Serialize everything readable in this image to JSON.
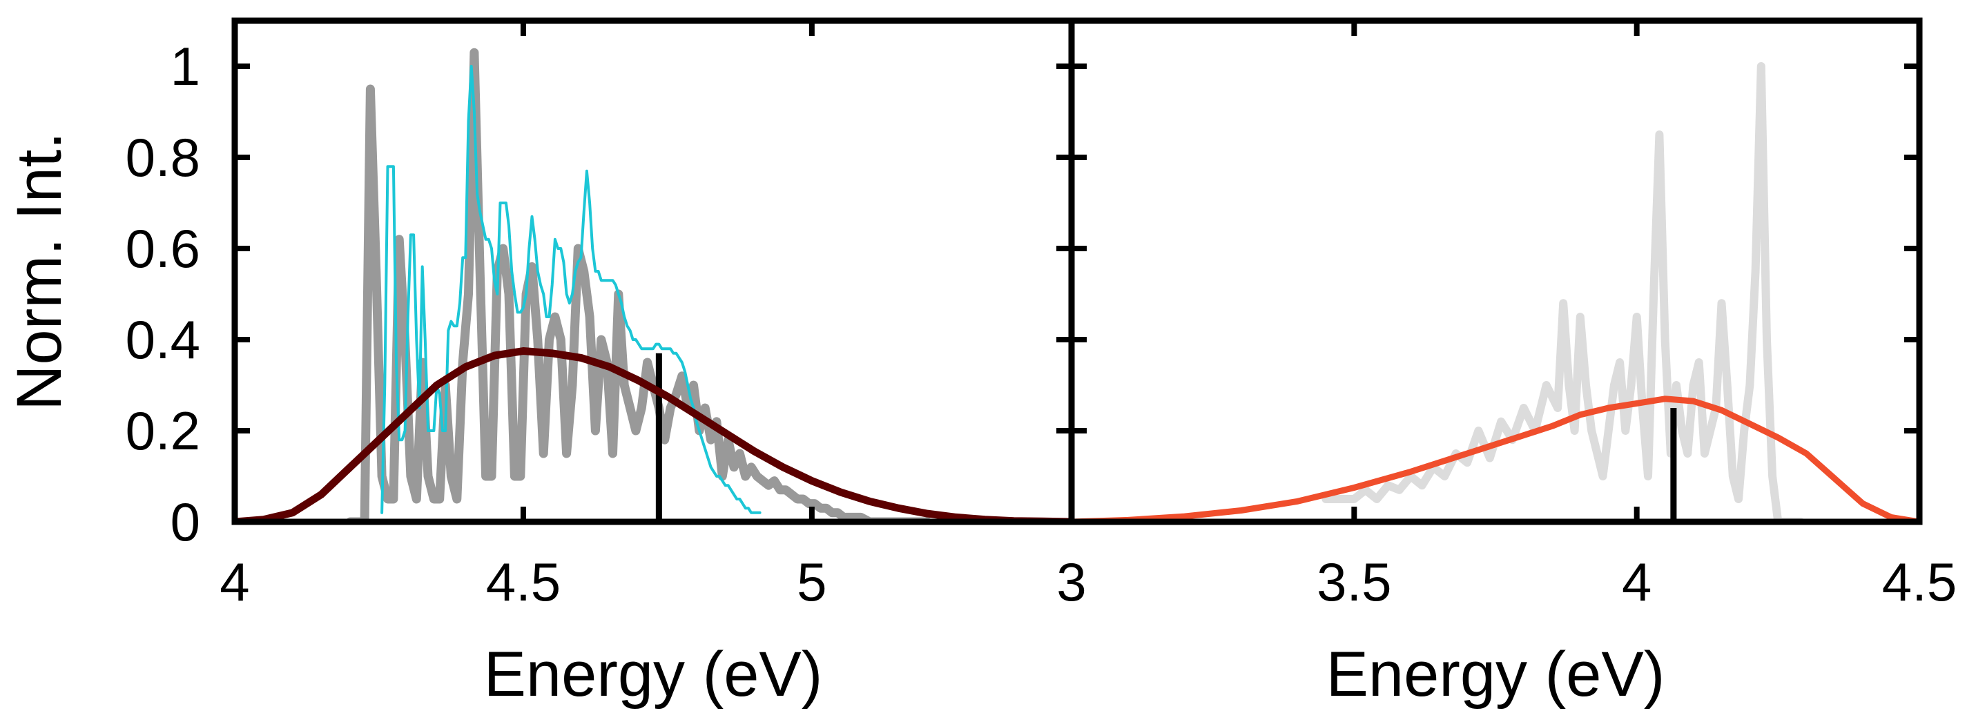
{
  "chart_data": [
    {
      "type": "line",
      "panel": "left",
      "title": "",
      "xlabel": "Energy (eV)",
      "ylabel": "Norm. Int.",
      "xlim": [
        4,
        5.45
      ],
      "ylim": [
        0,
        1.1
      ],
      "xticks": [
        4,
        4.5,
        5
      ],
      "xtick_labels": [
        "4",
        "4.5",
        "5"
      ],
      "yticks": [
        0,
        0.2,
        0.4,
        0.6,
        0.8,
        1
      ],
      "ytick_labels": [
        "0",
        "0.2",
        "0.4",
        "0.6",
        "0.8",
        "1"
      ],
      "series": [
        {
          "name": "grey vibronic spectrum",
          "color": "#999999",
          "x": [
            4.2,
            4.225,
            4.235,
            4.245,
            4.255,
            4.265,
            4.275,
            4.285,
            4.295,
            4.305,
            4.315,
            4.325,
            4.335,
            4.345,
            4.355,
            4.365,
            4.375,
            4.385,
            4.395,
            4.405,
            4.415,
            4.425,
            4.435,
            4.445,
            4.455,
            4.465,
            4.475,
            4.485,
            4.495,
            4.505,
            4.515,
            4.525,
            4.535,
            4.545,
            4.555,
            4.565,
            4.575,
            4.585,
            4.595,
            4.605,
            4.615,
            4.625,
            4.635,
            4.645,
            4.655,
            4.665,
            4.675,
            4.685,
            4.695,
            4.705,
            4.715,
            4.725,
            4.735,
            4.745,
            4.755,
            4.765,
            4.775,
            4.785,
            4.795,
            4.805,
            4.815,
            4.825,
            4.835,
            4.845,
            4.855,
            4.865,
            4.875,
            4.885,
            4.895,
            4.905,
            4.915,
            4.925,
            4.935,
            4.945,
            4.955,
            4.965,
            4.975,
            4.985,
            4.995,
            5.005,
            5.015,
            5.025,
            5.035,
            5.045,
            5.055,
            5.065,
            5.075,
            5.085,
            5.1,
            5.12,
            5.14,
            5.16,
            5.18,
            5.2
          ],
          "y": [
            0.0,
            0.0,
            0.95,
            0.55,
            0.1,
            0.05,
            0.05,
            0.62,
            0.4,
            0.1,
            0.05,
            0.35,
            0.1,
            0.05,
            0.05,
            0.3,
            0.1,
            0.05,
            0.35,
            0.5,
            1.03,
            0.55,
            0.1,
            0.1,
            0.55,
            0.6,
            0.5,
            0.1,
            0.1,
            0.5,
            0.56,
            0.4,
            0.15,
            0.4,
            0.45,
            0.4,
            0.15,
            0.3,
            0.6,
            0.55,
            0.45,
            0.2,
            0.4,
            0.35,
            0.15,
            0.5,
            0.3,
            0.25,
            0.2,
            0.25,
            0.35,
            0.3,
            0.25,
            0.18,
            0.25,
            0.28,
            0.32,
            0.25,
            0.3,
            0.2,
            0.25,
            0.18,
            0.22,
            0.1,
            0.18,
            0.12,
            0.15,
            0.1,
            0.12,
            0.1,
            0.09,
            0.08,
            0.09,
            0.07,
            0.07,
            0.06,
            0.05,
            0.05,
            0.04,
            0.04,
            0.03,
            0.03,
            0.02,
            0.02,
            0.01,
            0.01,
            0.01,
            0.01,
            0.0,
            0.0,
            0.0,
            0.0,
            0.0,
            0.0
          ]
        },
        {
          "name": "cyan spectrum",
          "color": "#1cc6d6",
          "x": [
            4.255,
            4.26,
            4.265,
            4.27,
            4.275,
            4.28,
            4.285,
            4.29,
            4.295,
            4.3,
            4.305,
            4.31,
            4.315,
            4.32,
            4.325,
            4.33,
            4.335,
            4.34,
            4.345,
            4.35,
            4.355,
            4.36,
            4.365,
            4.37,
            4.375,
            4.38,
            4.385,
            4.39,
            4.395,
            4.4,
            4.405,
            4.41,
            4.415,
            4.42,
            4.425,
            4.43,
            4.435,
            4.44,
            4.445,
            4.45,
            4.455,
            4.46,
            4.465,
            4.47,
            4.475,
            4.48,
            4.485,
            4.49,
            4.495,
            4.5,
            4.505,
            4.51,
            4.515,
            4.52,
            4.525,
            4.53,
            4.535,
            4.54,
            4.545,
            4.55,
            4.555,
            4.56,
            4.565,
            4.57,
            4.575,
            4.58,
            4.585,
            4.59,
            4.595,
            4.6,
            4.605,
            4.61,
            4.615,
            4.62,
            4.625,
            4.63,
            4.635,
            4.64,
            4.645,
            4.65,
            4.655,
            4.66,
            4.665,
            4.67,
            4.675,
            4.68,
            4.685,
            4.69,
            4.695,
            4.7,
            4.705,
            4.71,
            4.715,
            4.72,
            4.725,
            4.73,
            4.735,
            4.74,
            4.745,
            4.75,
            4.755,
            4.76,
            4.765,
            4.77,
            4.775,
            4.78,
            4.785,
            4.79,
            4.795,
            4.8,
            4.805,
            4.81,
            4.815,
            4.82,
            4.825,
            4.83,
            4.835,
            4.84,
            4.845,
            4.85,
            4.855,
            4.86,
            4.865,
            4.87,
            4.875,
            4.88,
            4.885,
            4.89,
            4.895,
            4.9,
            4.905,
            4.91
          ],
          "y": [
            0.02,
            0.3,
            0.78,
            0.78,
            0.78,
            0.35,
            0.18,
            0.18,
            0.2,
            0.45,
            0.63,
            0.63,
            0.4,
            0.25,
            0.56,
            0.4,
            0.2,
            0.2,
            0.2,
            0.3,
            0.28,
            0.2,
            0.2,
            0.42,
            0.44,
            0.43,
            0.43,
            0.48,
            0.58,
            0.58,
            0.88,
            1.0,
            0.9,
            0.72,
            0.68,
            0.65,
            0.62,
            0.62,
            0.6,
            0.53,
            0.5,
            0.7,
            0.7,
            0.7,
            0.65,
            0.55,
            0.5,
            0.46,
            0.46,
            0.47,
            0.5,
            0.6,
            0.67,
            0.62,
            0.55,
            0.52,
            0.5,
            0.45,
            0.45,
            0.52,
            0.62,
            0.6,
            0.6,
            0.57,
            0.5,
            0.48,
            0.5,
            0.55,
            0.57,
            0.58,
            0.68,
            0.77,
            0.7,
            0.6,
            0.55,
            0.55,
            0.53,
            0.53,
            0.53,
            0.53,
            0.53,
            0.52,
            0.5,
            0.48,
            0.45,
            0.43,
            0.42,
            0.4,
            0.4,
            0.39,
            0.38,
            0.38,
            0.38,
            0.38,
            0.38,
            0.39,
            0.39,
            0.38,
            0.38,
            0.38,
            0.38,
            0.37,
            0.37,
            0.36,
            0.35,
            0.33,
            0.3,
            0.27,
            0.25,
            0.22,
            0.2,
            0.18,
            0.16,
            0.14,
            0.12,
            0.11,
            0.1,
            0.1,
            0.09,
            0.08,
            0.08,
            0.07,
            0.06,
            0.05,
            0.05,
            0.04,
            0.03,
            0.03,
            0.02,
            0.02,
            0.02,
            0.02
          ]
        },
        {
          "name": "broadened spectrum",
          "color": "#5c0000",
          "x": [
            4.0,
            4.05,
            4.1,
            4.15,
            4.2,
            4.25,
            4.3,
            4.35,
            4.4,
            4.45,
            4.5,
            4.55,
            4.6,
            4.65,
            4.7,
            4.75,
            4.8,
            4.85,
            4.9,
            4.95,
            5.0,
            5.05,
            5.1,
            5.15,
            5.2,
            5.25,
            5.3,
            5.35,
            5.4,
            5.45
          ],
          "y": [
            0.0,
            0.005,
            0.02,
            0.06,
            0.12,
            0.18,
            0.24,
            0.3,
            0.34,
            0.365,
            0.375,
            0.37,
            0.36,
            0.34,
            0.31,
            0.275,
            0.235,
            0.195,
            0.155,
            0.12,
            0.09,
            0.065,
            0.045,
            0.03,
            0.018,
            0.01,
            0.005,
            0.002,
            0.001,
            0.0
          ]
        }
      ],
      "stick": {
        "x": 4.735,
        "y": 0.37,
        "color": "#000000"
      }
    },
    {
      "type": "line",
      "panel": "right",
      "title": "",
      "xlabel": "Energy (eV)",
      "ylabel": "",
      "xlim": [
        3,
        4.5
      ],
      "ylim": [
        0,
        1.1
      ],
      "xticks": [
        3,
        3.5,
        4,
        4.5
      ],
      "xtick_labels": [
        "3",
        "3.5",
        "4",
        "4.5"
      ],
      "series": [
        {
          "name": "light grey vibronic spectrum",
          "color": "#dcdcdc",
          "x": [
            3.45,
            3.5,
            3.52,
            3.54,
            3.56,
            3.58,
            3.6,
            3.62,
            3.64,
            3.66,
            3.68,
            3.7,
            3.72,
            3.74,
            3.76,
            3.78,
            3.8,
            3.82,
            3.84,
            3.86,
            3.87,
            3.88,
            3.89,
            3.9,
            3.91,
            3.92,
            3.93,
            3.94,
            3.95,
            3.96,
            3.97,
            3.98,
            3.99,
            4.0,
            4.01,
            4.02,
            4.03,
            4.04,
            4.05,
            4.06,
            4.07,
            4.08,
            4.09,
            4.1,
            4.11,
            4.12,
            4.13,
            4.14,
            4.15,
            4.16,
            4.17,
            4.18,
            4.19,
            4.2,
            4.21,
            4.22,
            4.23,
            4.24,
            4.25,
            4.26,
            4.27,
            4.28,
            4.29
          ],
          "y": [
            0.05,
            0.05,
            0.07,
            0.05,
            0.08,
            0.07,
            0.1,
            0.08,
            0.12,
            0.1,
            0.15,
            0.13,
            0.2,
            0.14,
            0.22,
            0.18,
            0.25,
            0.2,
            0.3,
            0.25,
            0.48,
            0.3,
            0.2,
            0.45,
            0.3,
            0.2,
            0.15,
            0.1,
            0.2,
            0.3,
            0.35,
            0.2,
            0.3,
            0.45,
            0.25,
            0.1,
            0.5,
            0.85,
            0.4,
            0.15,
            0.3,
            0.2,
            0.15,
            0.3,
            0.35,
            0.15,
            0.2,
            0.25,
            0.48,
            0.3,
            0.1,
            0.05,
            0.2,
            0.3,
            0.55,
            1.0,
            0.4,
            0.1,
            0.0,
            0.0,
            0.0,
            0.0,
            0.0
          ]
        },
        {
          "name": "broadened spectrum",
          "color": "#f04e2c",
          "x": [
            3.0,
            3.1,
            3.2,
            3.3,
            3.4,
            3.5,
            3.6,
            3.7,
            3.8,
            3.85,
            3.9,
            3.95,
            4.0,
            4.05,
            4.1,
            4.15,
            4.2,
            4.25,
            4.3,
            4.35,
            4.4,
            4.45,
            4.5
          ],
          "y": [
            0.0,
            0.004,
            0.012,
            0.025,
            0.045,
            0.075,
            0.11,
            0.15,
            0.19,
            0.21,
            0.235,
            0.25,
            0.26,
            0.27,
            0.265,
            0.245,
            0.215,
            0.185,
            0.15,
            0.095,
            0.04,
            0.01,
            0.0
          ]
        }
      ],
      "stick": {
        "x": 4.065,
        "y": 0.25,
        "color": "#000000"
      }
    }
  ]
}
